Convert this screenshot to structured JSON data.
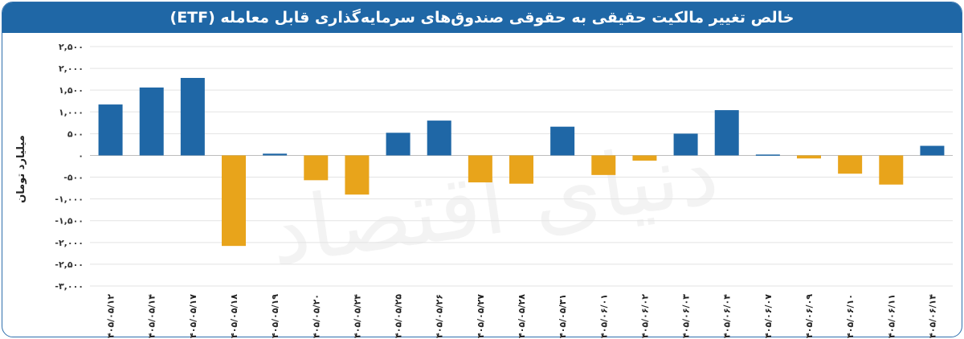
{
  "title": "خالص تغییر مالکیت حقیقی به حقوقی صندوق‌های سرمایه‌گذاری قابل معامله (ETF)",
  "watermark": "دنیای اقتصاد",
  "colors": {
    "positive": "#1f67a6",
    "negative": "#e8a41b",
    "title_bg": "#1f67a6"
  },
  "chart_data": {
    "type": "bar",
    "ylabel": "میلیارد تومان",
    "ylim": [
      -3000,
      2500
    ],
    "yticks": [
      2500,
      2000,
      1500,
      1000,
      500,
      0,
      -500,
      -1000,
      -1500,
      -2000,
      -2500,
      -3000
    ],
    "ytick_labels": [
      "۲,۵۰۰",
      "۲,۰۰۰",
      "۱,۵۰۰",
      "۱,۰۰۰",
      "۵۰۰",
      "۰",
      "-۵۰۰",
      "-۱,۰۰۰",
      "-۱,۵۰۰",
      "-۲,۰۰۰",
      "-۲,۵۰۰",
      "-۳,۰۰۰"
    ],
    "grid": true,
    "categories": [
      "۱۴۰۵/۰۵/۱۲",
      "۱۴۰۵/۰۵/۱۴",
      "۱۴۰۵/۰۵/۱۷",
      "۱۴۰۵/۰۵/۱۸",
      "۱۴۰۵/۰۵/۱۹",
      "۱۴۰۵/۰۵/۲۰",
      "۱۴۰۵/۰۵/۲۴",
      "۱۴۰۵/۰۵/۲۵",
      "۱۴۰۵/۰۵/۲۶",
      "۱۴۰۵/۰۵/۲۷",
      "۱۴۰۵/۰۵/۲۸",
      "۱۴۰۵/۰۵/۳۱",
      "۱۴۰۵/۰۶/۰۱",
      "۱۴۰۵/۰۶/۰۲",
      "۱۴۰۵/۰۶/۰۳",
      "۱۴۰۵/۰۶/۰۴",
      "۱۴۰۵/۰۶/۰۷",
      "۱۴۰۵/۰۶/۰۹",
      "۱۴۰۵/۰۶/۱۰",
      "۱۴۰۵/۰۶/۱۱",
      "۱۴۰۵/۰۶/۱۴"
    ],
    "values": [
      1170,
      1560,
      1780,
      -2080,
      40,
      -570,
      -900,
      520,
      800,
      -620,
      -650,
      660,
      -450,
      -120,
      500,
      1040,
      20,
      -70,
      -420,
      -670,
      220
    ]
  }
}
